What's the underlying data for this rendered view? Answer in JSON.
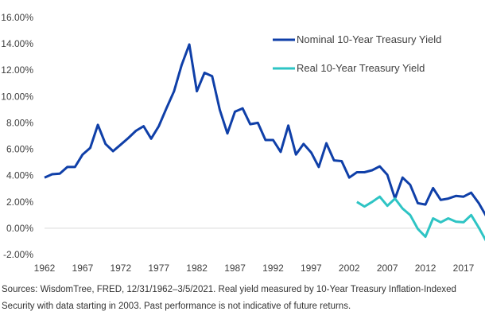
{
  "chart_data": {
    "type": "line",
    "ylim": [
      -2,
      16
    ],
    "y_ticks": [
      -2,
      0,
      2,
      4,
      6,
      8,
      10,
      12,
      14,
      16
    ],
    "y_tick_labels": [
      "-2.00%",
      "0.00%",
      "2.00%",
      "4.00%",
      "6.00%",
      "8.00%",
      "10.00%",
      "12.00%",
      "14.00%",
      "16.00%"
    ],
    "x_ticks": [
      1962,
      1967,
      1972,
      1977,
      1982,
      1987,
      1992,
      1997,
      2002,
      2007,
      2012,
      2017
    ],
    "x_tick_labels": [
      "1962",
      "1967",
      "1972",
      "1977",
      "1982",
      "1987",
      "1992",
      "1997",
      "2002",
      "2007",
      "2012",
      "2017"
    ],
    "xlim": [
      1962,
      2021.2
    ],
    "grid": false,
    "legend_position": "top-right",
    "series": [
      {
        "name": "Nominal 10-Year Treasury Yield",
        "color": "#0f3fa8",
        "x": [
          1962,
          1963,
          1964,
          1965,
          1966,
          1967,
          1968,
          1969,
          1970,
          1971,
          1972,
          1973,
          1974,
          1975,
          1976,
          1977,
          1978,
          1979,
          1980,
          1981,
          1982,
          1983,
          1984,
          1985,
          1986,
          1987,
          1988,
          1989,
          1990,
          1991,
          1992,
          1993,
          1994,
          1995,
          1996,
          1997,
          1998,
          1999,
          2000,
          2001,
          2002,
          2003,
          2004,
          2005,
          2006,
          2007,
          2008,
          2009,
          2010,
          2011,
          2012,
          2013,
          2014,
          2015,
          2016,
          2017,
          2018,
          2019,
          2020,
          2021.2
        ],
        "values": [
          3.85,
          4.1,
          4.15,
          4.65,
          4.65,
          5.6,
          6.1,
          7.85,
          6.4,
          5.85,
          6.35,
          6.85,
          7.4,
          7.75,
          6.8,
          7.75,
          9.1,
          10.4,
          12.4,
          13.95,
          10.4,
          11.8,
          11.55,
          9.0,
          7.2,
          8.85,
          9.1,
          7.9,
          8.0,
          6.7,
          6.7,
          5.8,
          7.8,
          5.6,
          6.4,
          5.75,
          4.65,
          6.45,
          5.15,
          5.1,
          3.85,
          4.25,
          4.25,
          4.4,
          4.7,
          4.05,
          2.25,
          3.85,
          3.3,
          1.9,
          1.8,
          3.05,
          2.15,
          2.25,
          2.45,
          2.4,
          2.7,
          1.9,
          0.9,
          1.55
        ]
      },
      {
        "name": "Real 10-Year Treasury Yield",
        "color": "#2ec4c4",
        "x": [
          2003,
          2004,
          2005,
          2006,
          2007,
          2008,
          2009,
          2010,
          2011,
          2012,
          2013,
          2014,
          2015,
          2016,
          2017,
          2018,
          2019,
          2020,
          2021.2
        ],
        "values": [
          2.0,
          1.65,
          2.0,
          2.4,
          1.7,
          2.25,
          1.5,
          1.0,
          -0.05,
          -0.65,
          0.75,
          0.45,
          0.75,
          0.5,
          0.45,
          1.0,
          0.05,
          -1.0,
          -0.65
        ]
      }
    ]
  },
  "source_note": "Sources: WisdomTree, FRED, 12/31/1962–3/5/2021. Real yield measured by 10-Year Treasury Inflation-Indexed Security with data starting in 2003. Past performance is not indicative of future returns."
}
